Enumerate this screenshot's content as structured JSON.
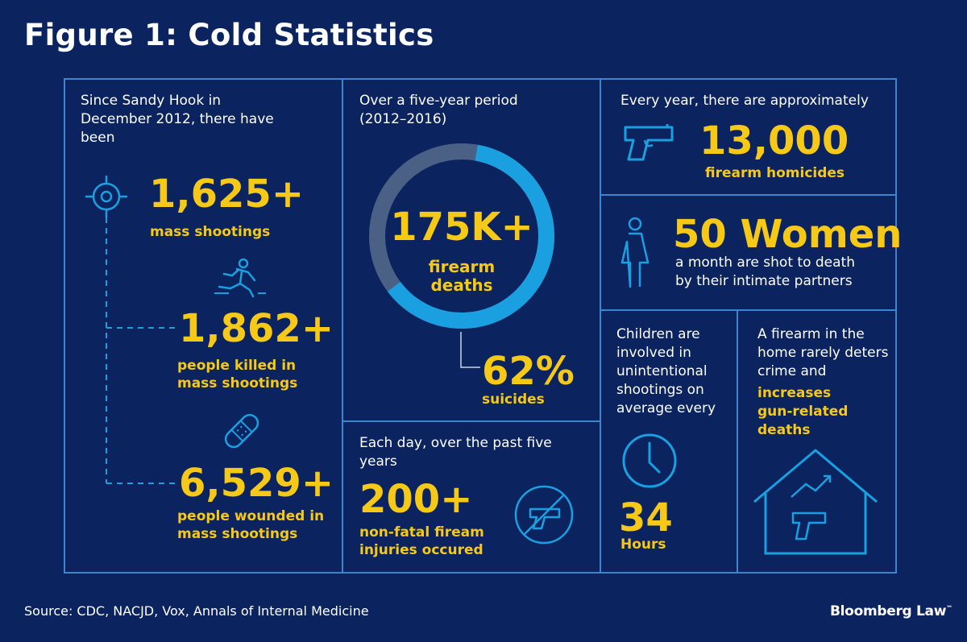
{
  "title": "Figure 1: Cold Statistics",
  "colors": {
    "background": "#0b2460",
    "accent_yellow": "#f6c817",
    "accent_blue": "#1aa0e0",
    "line_blue": "#3d86cf",
    "ring_gray": "#4a6185"
  },
  "panel_sandy_hook": {
    "intro": "Since Sandy Hook in December 2012, there have been",
    "stats": [
      {
        "value": "1,625+",
        "label": "mass shootings",
        "icon": "crosshair-icon"
      },
      {
        "value": "1,862+",
        "label": "people killed in mass shootings",
        "icon": "running-person-icon"
      },
      {
        "value": "6,529+",
        "label": "people wounded in mass shootings",
        "icon": "bandage-icon"
      }
    ]
  },
  "panel_five_year": {
    "intro": "Over a five-year period (2012–2016)",
    "value": "175K+",
    "label": "firearm deaths",
    "suicide_share_percent": 62,
    "suicide_value": "62%",
    "suicide_label": "suicides"
  },
  "panel_daily": {
    "intro": "Each day, over the past five years",
    "value": "200+",
    "label": "non-fatal fiream injuries occured",
    "icon": "no-gun-icon"
  },
  "panel_homicides": {
    "intro": "Every year, there are approximately",
    "value": "13,000",
    "label": "firearm homicides",
    "icon": "handgun-icon"
  },
  "panel_women": {
    "value": "50 Women",
    "description": "a month are shot to death by their intimate partners",
    "icon": "woman-icon"
  },
  "panel_children": {
    "intro": "Children are involved in unintentional shootings on average every",
    "value": "34",
    "label": "Hours",
    "icon": "clock-icon"
  },
  "panel_home": {
    "intro": "A firearm in the home rarely deters crime and",
    "highlight": "increases gun-related deaths",
    "icon": "house-gun-icon"
  },
  "footer": {
    "source": "Source: CDC, NACJD, Vox, Annals of Internal Medicine",
    "brand": "Bloomberg Law"
  }
}
